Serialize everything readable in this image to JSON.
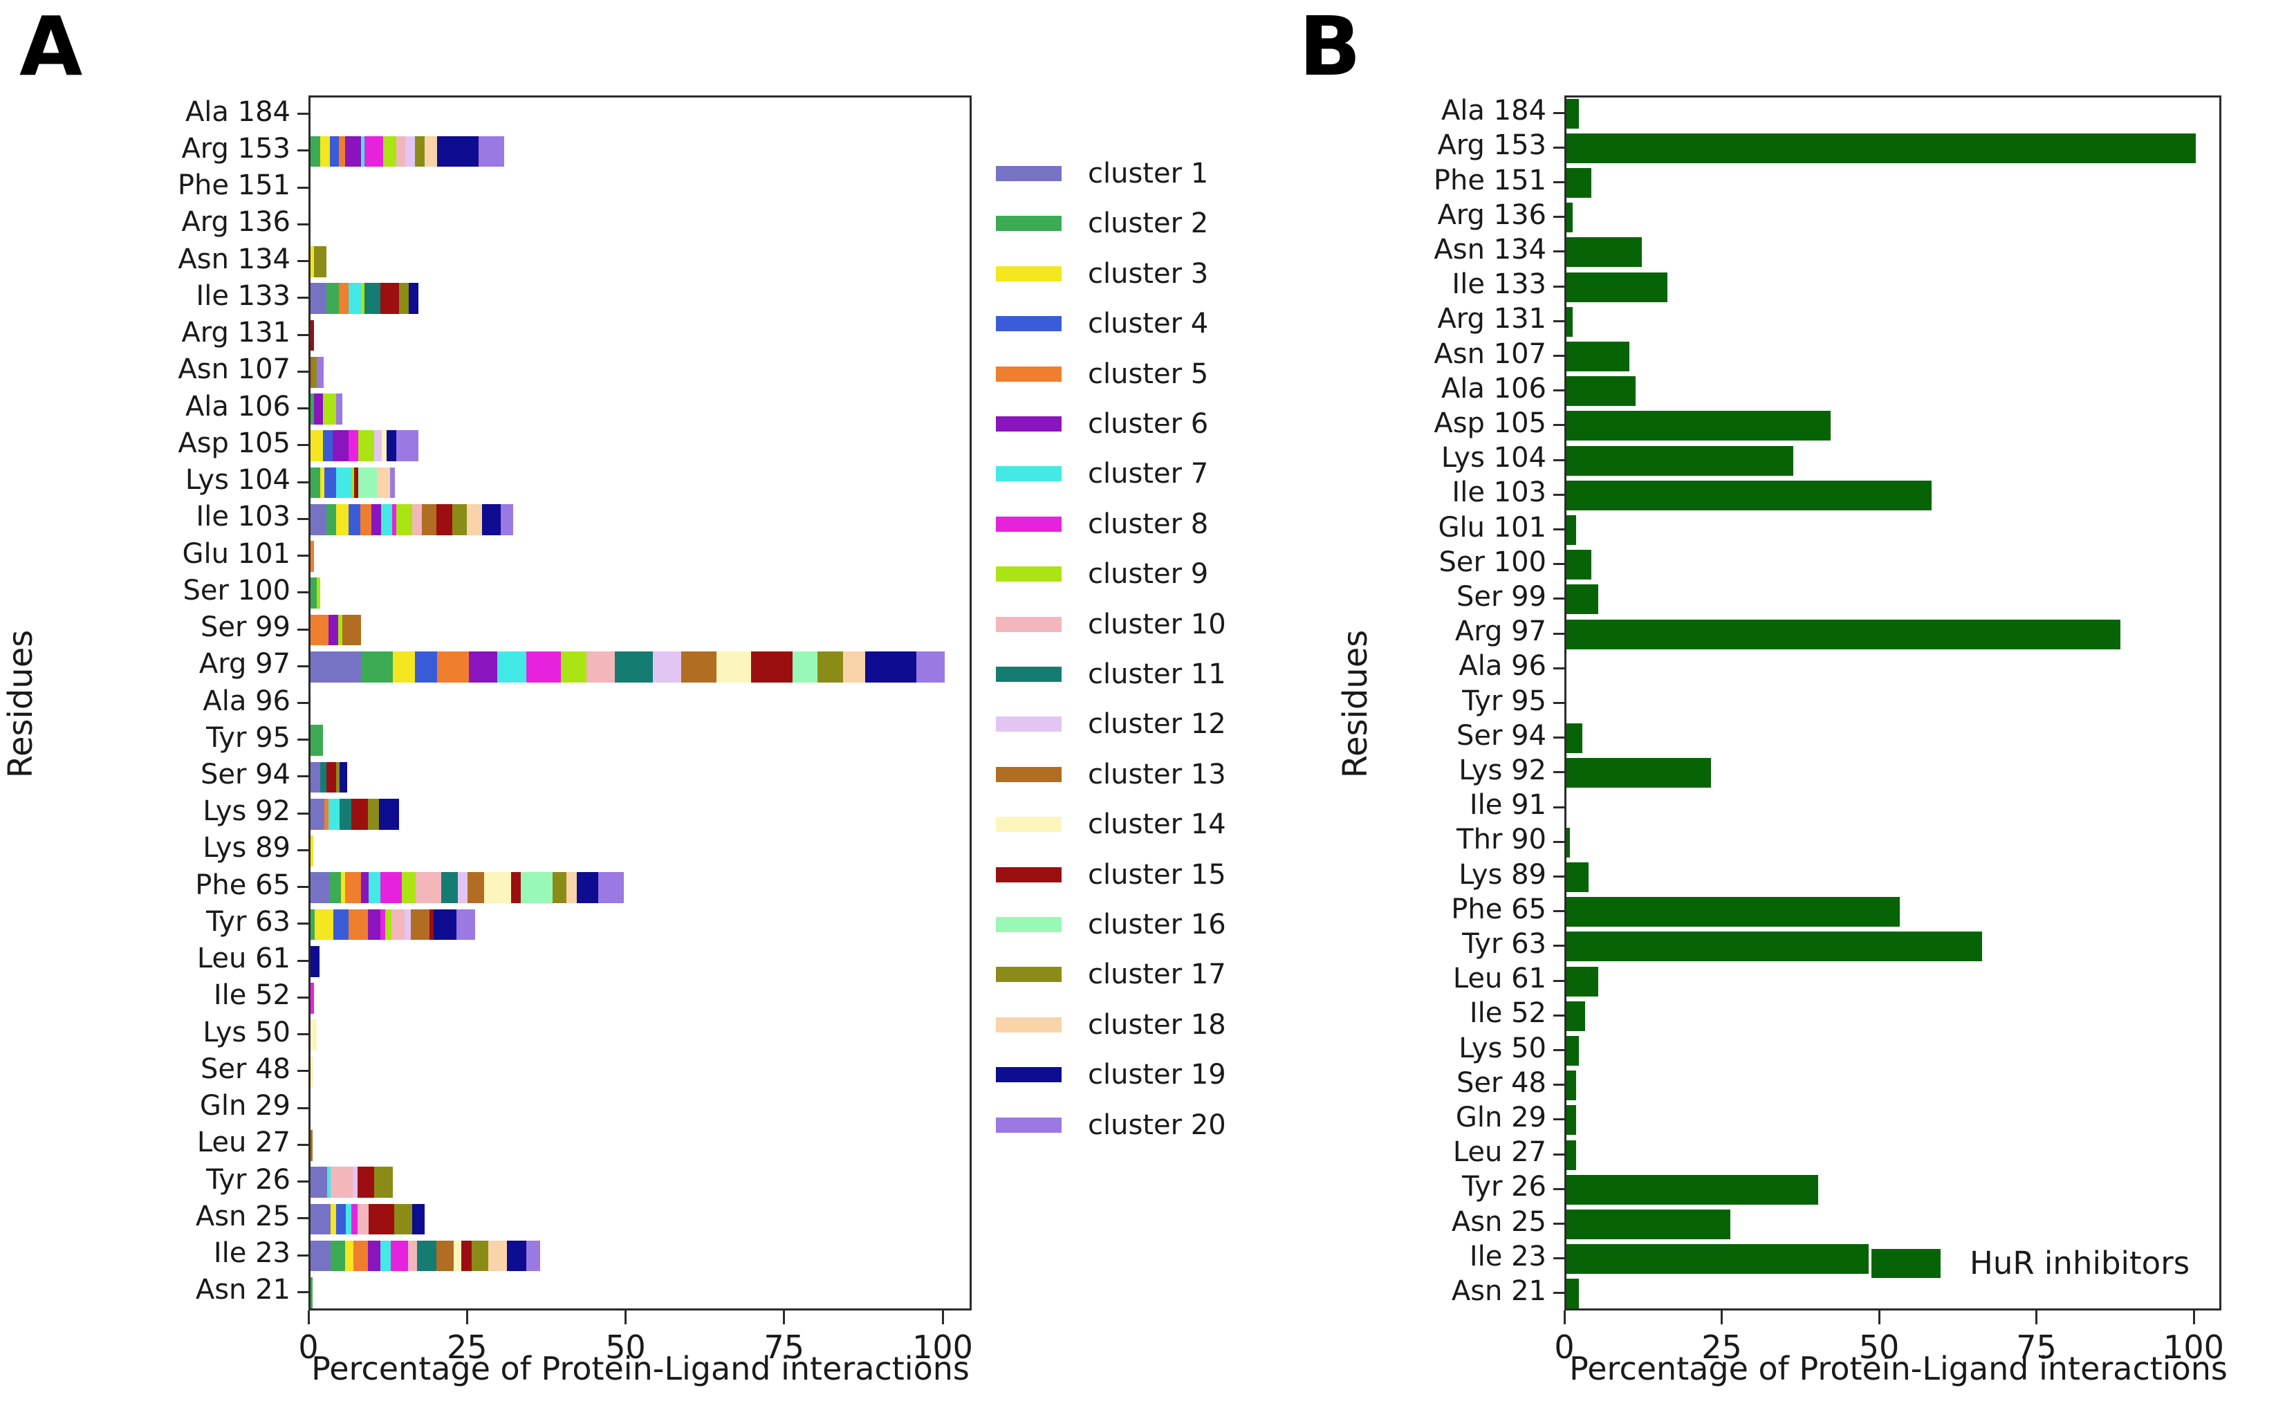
{
  "figure": {
    "panel_a_label": "A",
    "panel_b_label": "B",
    "xlabel": "Percentage of Protein-Ligand interactions",
    "ylabel": "Residues",
    "xticks": [
      0,
      25,
      50,
      75,
      100
    ]
  },
  "clusters": {
    "labels": [
      "cluster 1",
      "cluster 2",
      "cluster 3",
      "cluster 4",
      "cluster 5",
      "cluster 6",
      "cluster 7",
      "cluster 8",
      "cluster 9",
      "cluster 10",
      "cluster 11",
      "cluster 12",
      "cluster 13",
      "cluster 14",
      "cluster 15",
      "cluster 16",
      "cluster 17",
      "cluster 18",
      "cluster 19",
      "cluster 20"
    ],
    "colors": [
      "#7673c5",
      "#3cab54",
      "#f4e61f",
      "#3b5cd9",
      "#ef7e2e",
      "#8a14bd",
      "#43e9e5",
      "#e722dd",
      "#abe414",
      "#f2b6bb",
      "#157c72",
      "#e3c5f3",
      "#b16d22",
      "#fcf5bd",
      "#9c0f10",
      "#98f9b6",
      "#8b8c17",
      "#f9d3a9",
      "#0e0c90",
      "#9a79e2"
    ]
  },
  "chart_data": [
    {
      "panel": "A",
      "type": "stacked-bar-horizontal",
      "title": "Cluster-wise protein-ligand interaction percentages",
      "xlabel": "Percentage of Protein-Ligand interactions",
      "ylabel": "Residues",
      "xlim": [
        0,
        105
      ],
      "xticks": [
        0,
        25,
        50,
        75,
        100
      ],
      "legend_position": "right-outside",
      "categories": [
        "Ala 184",
        "Arg 153",
        "Phe 151",
        "Arg 136",
        "Asn 134",
        "Ile 133",
        "Arg 131",
        "Asn 107",
        "Ala 106",
        "Asp 105",
        "Lys 104",
        "Ile 103",
        "Glu 101",
        "Ser 100",
        "Ser 99",
        "Arg 97",
        "Ala 96",
        "Tyr 95",
        "Ser 94",
        "Lys 92",
        "Lys 89",
        "Phe 65",
        "Tyr 63",
        "Leu 61",
        "Ile 52",
        "Lys 50",
        "Ser 48",
        "Gln 29",
        "Leu 27",
        "Tyr 26",
        "Asn 25",
        "Ile 23",
        "Asn 21"
      ],
      "segments": [
        [],
        [
          [
            2,
            1.5
          ],
          [
            3,
            1.5
          ],
          [
            4,
            1.5
          ],
          [
            5,
            1.0
          ],
          [
            6,
            2.5
          ],
          [
            7,
            0.5
          ],
          [
            8,
            3.0
          ],
          [
            9,
            2.0
          ],
          [
            10,
            1.5
          ],
          [
            12,
            1.5
          ],
          [
            17,
            1.5
          ],
          [
            18,
            2.0
          ],
          [
            19,
            6.5
          ],
          [
            20,
            4.0
          ]
        ],
        [],
        [],
        [
          [
            3,
            0.5
          ],
          [
            17,
            2.0
          ]
        ],
        [
          [
            1,
            2.5
          ],
          [
            2,
            2.0
          ],
          [
            5,
            1.5
          ],
          [
            7,
            2.0
          ],
          [
            9,
            0.5
          ],
          [
            11,
            2.5
          ],
          [
            15,
            3.0
          ],
          [
            17,
            1.5
          ],
          [
            19,
            1.5
          ]
        ],
        [
          [
            15,
            0.5
          ]
        ],
        [
          [
            13,
            0.3
          ],
          [
            17,
            0.7
          ],
          [
            20,
            1.0
          ]
        ],
        [
          [
            2,
            0.5
          ],
          [
            6,
            1.5
          ],
          [
            9,
            2.0
          ],
          [
            20,
            1.0
          ]
        ],
        [
          [
            3,
            2.0
          ],
          [
            4,
            1.5
          ],
          [
            6,
            2.5
          ],
          [
            8,
            1.5
          ],
          [
            9,
            2.5
          ],
          [
            12,
            1.2
          ],
          [
            14,
            0.8
          ],
          [
            19,
            1.5
          ],
          [
            20,
            3.5
          ]
        ],
        [
          [
            2,
            1.5
          ],
          [
            3,
            0.7
          ],
          [
            4,
            1.8
          ],
          [
            7,
            2.5
          ],
          [
            9,
            0.4
          ],
          [
            15,
            0.6
          ],
          [
            16,
            3.0
          ],
          [
            18,
            2.0
          ],
          [
            20,
            0.8
          ]
        ],
        [
          [
            1,
            2.5
          ],
          [
            2,
            1.5
          ],
          [
            3,
            2.0
          ],
          [
            4,
            1.8
          ],
          [
            5,
            1.8
          ],
          [
            6,
            1.5
          ],
          [
            7,
            1.8
          ],
          [
            8,
            0.6
          ],
          [
            9,
            2.5
          ],
          [
            10,
            1.6
          ],
          [
            13,
            2.2
          ],
          [
            15,
            2.6
          ],
          [
            17,
            2.2
          ],
          [
            18,
            2.4
          ],
          [
            19,
            3.0
          ],
          [
            20,
            2.0
          ]
        ],
        [
          [
            5,
            0.5
          ]
        ],
        [
          [
            2,
            1.0
          ],
          [
            9,
            0.5
          ]
        ],
        [
          [
            5,
            2.8
          ],
          [
            6,
            1.6
          ],
          [
            9,
            0.6
          ],
          [
            13,
            3.0
          ]
        ],
        [
          [
            1,
            8.0
          ],
          [
            2,
            5.0
          ],
          [
            3,
            3.5
          ],
          [
            4,
            3.5
          ],
          [
            5,
            5.0
          ],
          [
            6,
            4.5
          ],
          [
            7,
            4.5
          ],
          [
            8,
            5.5
          ],
          [
            9,
            4.0
          ],
          [
            10,
            4.5
          ],
          [
            11,
            6.0
          ],
          [
            12,
            4.5
          ],
          [
            13,
            5.5
          ],
          [
            14,
            5.5
          ],
          [
            15,
            6.5
          ],
          [
            16,
            4.0
          ],
          [
            17,
            4.0
          ],
          [
            18,
            3.5
          ],
          [
            19,
            8.0
          ],
          [
            20,
            4.5
          ]
        ],
        [],
        [
          [
            2,
            2.0
          ]
        ],
        [
          [
            1,
            1.5
          ],
          [
            11,
            1.0
          ],
          [
            15,
            1.5
          ],
          [
            17,
            0.6
          ],
          [
            19,
            1.2
          ]
        ],
        [
          [
            1,
            2.2
          ],
          [
            5,
            0.6
          ],
          [
            7,
            1.8
          ],
          [
            11,
            1.8
          ],
          [
            15,
            2.6
          ],
          [
            17,
            1.8
          ],
          [
            19,
            3.2
          ]
        ],
        [
          [
            3,
            0.4
          ]
        ],
        [
          [
            1,
            3.0
          ],
          [
            2,
            1.8
          ],
          [
            3,
            0.6
          ],
          [
            5,
            2.6
          ],
          [
            6,
            1.2
          ],
          [
            7,
            1.8
          ],
          [
            8,
            3.4
          ],
          [
            9,
            2.2
          ],
          [
            10,
            4.0
          ],
          [
            11,
            2.6
          ],
          [
            12,
            1.6
          ],
          [
            13,
            2.6
          ],
          [
            14,
            4.2
          ],
          [
            15,
            1.6
          ],
          [
            16,
            5.0
          ],
          [
            17,
            2.2
          ],
          [
            18,
            1.6
          ],
          [
            19,
            3.4
          ],
          [
            20,
            4.0
          ]
        ],
        [
          [
            2,
            0.6
          ],
          [
            3,
            3.0
          ],
          [
            4,
            2.4
          ],
          [
            5,
            3.0
          ],
          [
            6,
            2.0
          ],
          [
            8,
            0.8
          ],
          [
            9,
            1.0
          ],
          [
            10,
            2.0
          ],
          [
            12,
            1.0
          ],
          [
            13,
            3.0
          ],
          [
            15,
            0.6
          ],
          [
            19,
            3.6
          ],
          [
            20,
            3.0
          ]
        ],
        [
          [
            19,
            1.4
          ]
        ],
        [
          [
            8,
            0.5
          ]
        ],
        [
          [
            14,
            1.0
          ]
        ],
        [
          [
            14,
            0.4
          ]
        ],
        [],
        [
          [
            13,
            0.3
          ]
        ],
        [
          [
            1,
            2.6
          ],
          [
            7,
            0.6
          ],
          [
            10,
            3.4
          ],
          [
            12,
            0.8
          ],
          [
            15,
            2.6
          ],
          [
            17,
            3.0
          ]
        ],
        [
          [
            1,
            3.2
          ],
          [
            3,
            0.8
          ],
          [
            4,
            1.6
          ],
          [
            7,
            0.8
          ],
          [
            8,
            1.0
          ],
          [
            10,
            1.8
          ],
          [
            15,
            4.0
          ],
          [
            17,
            2.8
          ],
          [
            19,
            2.0
          ]
        ],
        [
          [
            1,
            3.2
          ],
          [
            2,
            2.2
          ],
          [
            3,
            1.4
          ],
          [
            5,
            2.2
          ],
          [
            6,
            2.0
          ],
          [
            7,
            1.6
          ],
          [
            8,
            2.8
          ],
          [
            10,
            1.4
          ],
          [
            11,
            3.0
          ],
          [
            13,
            2.8
          ],
          [
            14,
            1.2
          ],
          [
            15,
            1.6
          ],
          [
            17,
            2.6
          ],
          [
            18,
            3.0
          ],
          [
            19,
            3.0
          ],
          [
            20,
            2.2
          ]
        ],
        [
          [
            2,
            0.3
          ]
        ]
      ]
    },
    {
      "panel": "B",
      "type": "bar",
      "title": "HuR inhibitors protein-ligand interaction percentages",
      "xlabel": "Percentage of Protein-Ligand interactions",
      "ylabel": "Residues",
      "xlim": [
        0,
        105
      ],
      "xticks": [
        0,
        25,
        50,
        75,
        100
      ],
      "legend": "HuR inhibitors",
      "legend_position": "bottom-right-inside",
      "bar_color": "#066406",
      "categories": [
        "Ala 184",
        "Arg 153",
        "Phe 151",
        "Arg 136",
        "Asn 134",
        "Ile 133",
        "Arg 131",
        "Asn 107",
        "Ala 106",
        "Asp 105",
        "Lys 104",
        "Ile 103",
        "Glu 101",
        "Ser 100",
        "Ser 99",
        "Arg 97",
        "Ala 96",
        "Tyr 95",
        "Ser 94",
        "Lys 92",
        "Ile 91",
        "Thr 90",
        "Lys 89",
        "Phe 65",
        "Tyr 63",
        "Leu 61",
        "Ile 52",
        "Lys 50",
        "Ser 48",
        "Gln 29",
        "Leu 27",
        "Tyr 26",
        "Asn 25",
        "Ile 23",
        "Asn 21"
      ],
      "values": [
        2,
        100,
        4,
        1,
        12,
        16,
        1,
        10,
        11,
        42,
        36,
        58,
        1.5,
        4,
        5,
        88,
        0,
        0,
        2.5,
        23,
        0,
        0.5,
        3.5,
        53,
        66,
        5,
        3,
        2,
        1.5,
        1.5,
        1.5,
        40,
        26,
        48,
        2
      ]
    }
  ]
}
